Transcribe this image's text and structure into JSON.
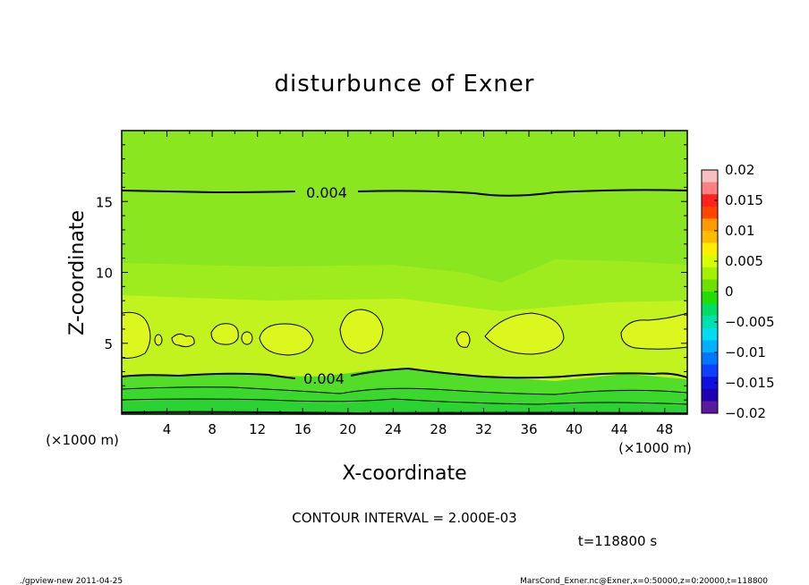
{
  "chart_data": {
    "type": "contour",
    "title": "disturbunce of Exner",
    "xlabel": "X-coordinate",
    "ylabel": "Z-coordinate",
    "x_unit_left": "(×1000 m)",
    "x_unit_right": "(×1000 m)",
    "xlim": [
      0,
      50
    ],
    "ylim": [
      0,
      20
    ],
    "x_ticks": [
      4,
      8,
      12,
      16,
      20,
      24,
      28,
      32,
      36,
      40,
      44,
      48
    ],
    "y_ticks": [
      5,
      10,
      15
    ],
    "contour_interval_label": "CONTOUR INTERVAL = 2.000E-03",
    "time_label": "t=118800 s",
    "contour_labels": [
      {
        "text": "0.004",
        "x": 18.5,
        "z": 15.5
      },
      {
        "text": "0.004",
        "x": 18.0,
        "z": 2.5
      }
    ],
    "colorbar": {
      "labels": [
        "0.02",
        "0.015",
        "0.01",
        "0.005",
        "0",
        "−0.005",
        "−0.01",
        "−0.015",
        "−0.02"
      ],
      "colors": [
        "#f7c0c0",
        "#ff8080",
        "#ff2020",
        "#ff4500",
        "#ff9900",
        "#ffbb00",
        "#ffee00",
        "#d7ff00",
        "#a5f000",
        "#6ce000",
        "#22dd00",
        "#00dd66",
        "#00e0b0",
        "#00ddee",
        "#00b0ff",
        "#0077ff",
        "#1040ff",
        "#1010e0",
        "#2000b0",
        "#5a1aa0"
      ]
    },
    "levels": {
      "top_band": {
        "value": "0.004–0.006",
        "z_range": [
          15.6,
          20
        ],
        "color": "#8ae61e"
      },
      "upper_mid": {
        "value": "0.004–0.006",
        "z_range": [
          10,
          15.6
        ],
        "color": "#9eeb1e"
      },
      "middle": {
        "value": "0.006–0.008",
        "z_range": [
          3,
          10
        ],
        "color": "#c3f31e"
      },
      "cells": {
        "value": ">0.008",
        "color": "#dcf71e"
      },
      "bottom": {
        "value": "0–0.004",
        "z_range": [
          0,
          3
        ],
        "color": "#46dc28"
      }
    }
  },
  "footer": {
    "left": "./gpview-new  2011-04-25",
    "right": "MarsCond_Exner.nc@Exner,x=0:50000,z=0:20000,t=118800"
  }
}
